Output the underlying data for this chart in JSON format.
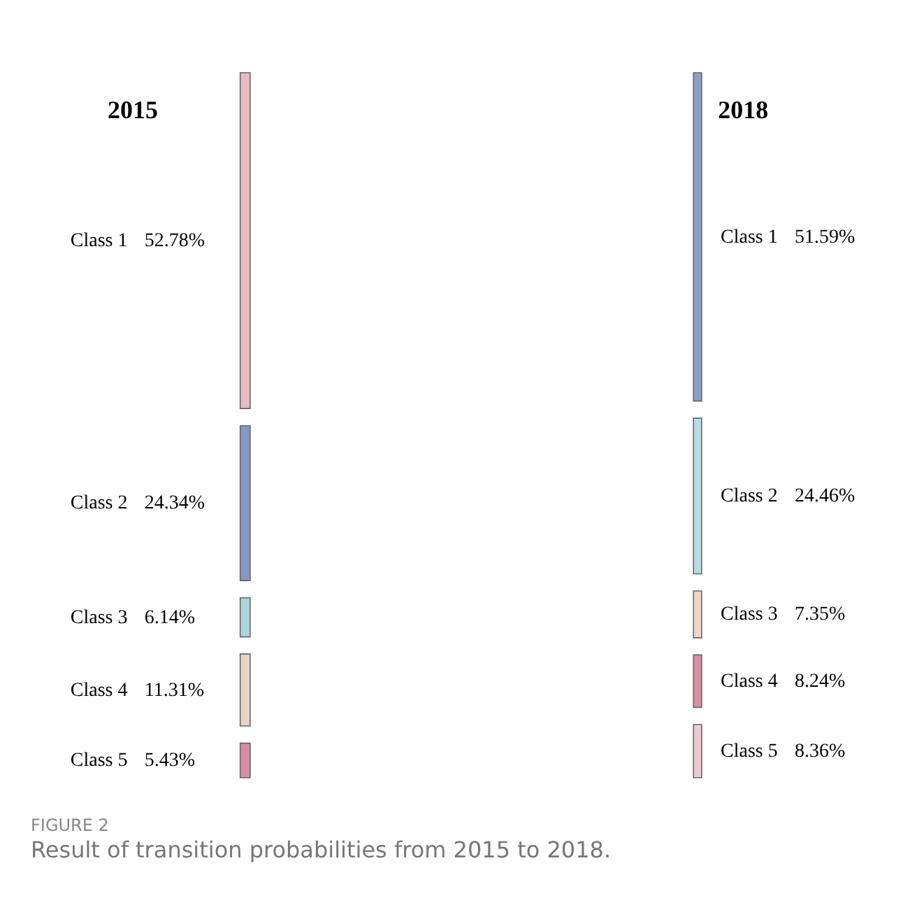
{
  "chart_data": {
    "type": "other",
    "title": "FIGURE 2",
    "subtitle": "Result of transition probabilities from 2015 to 2018.",
    "categories": [
      "Class 1",
      "Class 2",
      "Class 3",
      "Class 4",
      "Class 5"
    ],
    "series": [
      {
        "name": "2015",
        "values": [
          52.78,
          24.34,
          6.14,
          11.31,
          5.43
        ],
        "value_labels": [
          "52.78%",
          "24.34%",
          "6.14%",
          "11.31%",
          "5.43%"
        ],
        "colors": [
          "#e6bcc0",
          "#8898c4",
          "#acd4dc",
          "#e8d4c4",
          "#d88ca4"
        ]
      },
      {
        "name": "2018",
        "values": [
          51.59,
          24.46,
          7.35,
          8.24,
          8.36
        ],
        "value_labels": [
          "51.59%",
          "24.46%",
          "7.35%",
          "8.24%",
          "8.36%"
        ],
        "colors": [
          "#8fa0c8",
          "#b8dce2",
          "#ecd8c8",
          "#d890a4",
          "#ecccd2"
        ]
      }
    ]
  }
}
